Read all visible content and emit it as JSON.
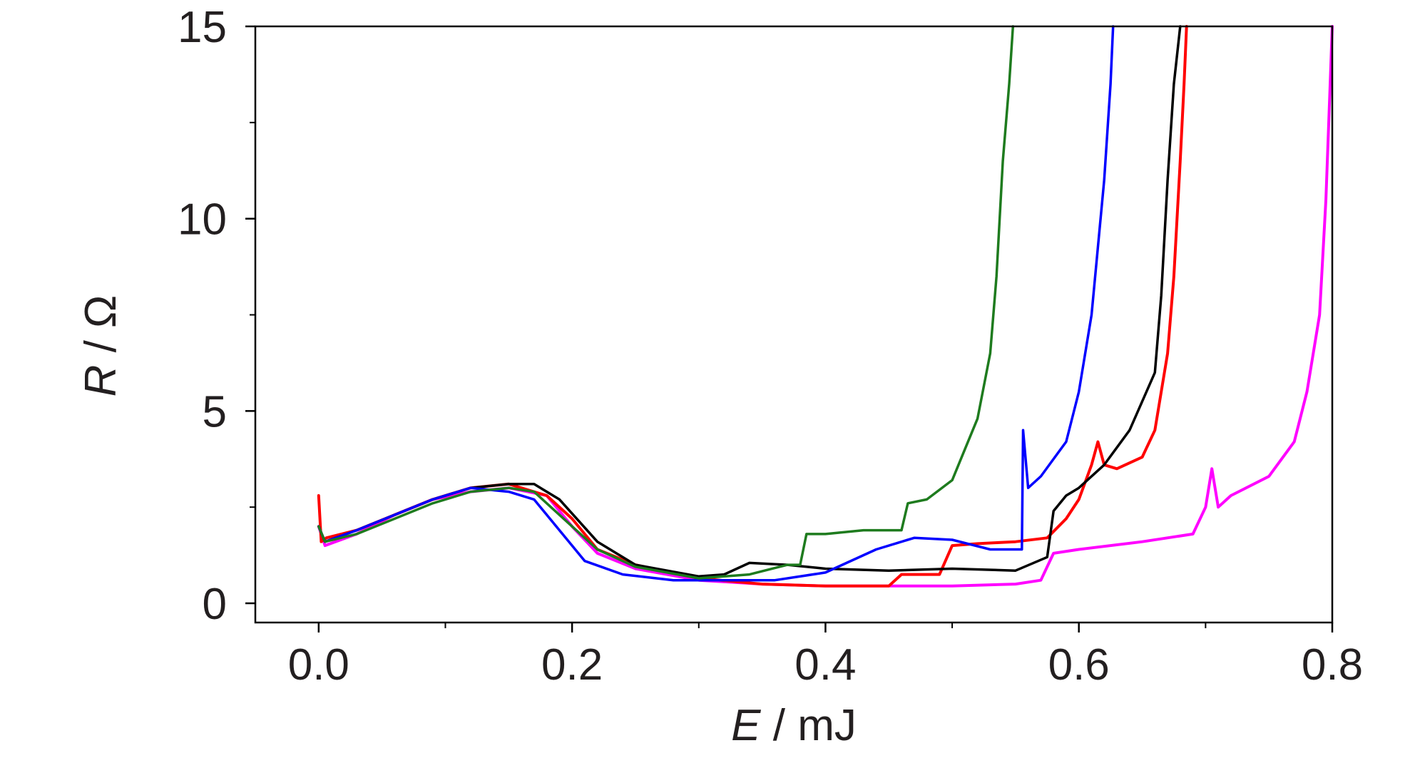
{
  "chart_data": {
    "type": "line",
    "title": "",
    "xlabel": {
      "symbol": "E",
      "unit": " / mJ"
    },
    "ylabel": {
      "symbol": "R",
      "unit": " /  Ω"
    },
    "xlim": [
      -0.05,
      0.8
    ],
    "ylim": [
      -0.5,
      15
    ],
    "xticks": [
      0.0,
      0.2,
      0.4,
      0.6,
      0.8
    ],
    "xtick_labels": [
      "0.0",
      "0.2",
      "0.4",
      "0.6",
      "0.8"
    ],
    "yticks": [
      0,
      5,
      10,
      15
    ],
    "ytick_labels": [
      "0",
      "5",
      "10",
      "15"
    ],
    "x_minor_ticks": [
      0.1,
      0.3,
      0.5,
      0.7
    ],
    "y_minor_ticks": [
      2.5,
      7.5,
      12.5
    ],
    "grid": false,
    "legend": "none",
    "series": [
      {
        "color": "#ff00ff",
        "x": [
          0.0,
          0.005,
          0.03,
          0.06,
          0.09,
          0.12,
          0.15,
          0.18,
          0.2,
          0.22,
          0.25,
          0.3,
          0.35,
          0.4,
          0.45,
          0.5,
          0.55,
          0.57,
          0.58,
          0.6,
          0.65,
          0.69,
          0.7,
          0.705,
          0.71,
          0.72,
          0.75,
          0.77,
          0.78,
          0.79,
          0.795,
          0.8
        ],
        "y": [
          2.0,
          1.5,
          1.8,
          2.3,
          2.7,
          2.9,
          3.0,
          2.8,
          2.0,
          1.3,
          0.9,
          0.6,
          0.5,
          0.45,
          0.45,
          0.45,
          0.5,
          0.6,
          1.3,
          1.4,
          1.6,
          1.8,
          2.5,
          3.5,
          2.5,
          2.8,
          3.3,
          4.2,
          5.5,
          7.5,
          10.5,
          15
        ]
      },
      {
        "color": "#ff0000",
        "x": [
          0.0,
          0.002,
          0.006,
          0.03,
          0.06,
          0.09,
          0.12,
          0.15,
          0.18,
          0.2,
          0.22,
          0.25,
          0.3,
          0.35,
          0.4,
          0.45,
          0.46,
          0.49,
          0.5,
          0.52,
          0.55,
          0.575,
          0.59,
          0.6,
          0.61,
          0.615,
          0.62,
          0.63,
          0.65,
          0.66,
          0.67,
          0.675,
          0.68,
          0.683,
          0.685
        ],
        "y": [
          2.8,
          1.6,
          1.7,
          1.9,
          2.3,
          2.7,
          3.0,
          3.1,
          2.8,
          2.2,
          1.4,
          1.0,
          0.65,
          0.5,
          0.45,
          0.45,
          0.75,
          0.75,
          1.5,
          1.55,
          1.6,
          1.7,
          2.2,
          2.7,
          3.6,
          4.2,
          3.6,
          3.5,
          3.8,
          4.5,
          6.5,
          8.5,
          11.5,
          13.5,
          15
        ]
      },
      {
        "color": "#000000",
        "x": [
          0.0,
          0.005,
          0.03,
          0.06,
          0.09,
          0.12,
          0.15,
          0.17,
          0.19,
          0.22,
          0.25,
          0.3,
          0.32,
          0.34,
          0.37,
          0.4,
          0.45,
          0.5,
          0.55,
          0.575,
          0.58,
          0.59,
          0.6,
          0.62,
          0.64,
          0.66,
          0.665,
          0.67,
          0.675,
          0.68
        ],
        "y": [
          2.0,
          1.6,
          1.9,
          2.3,
          2.7,
          3.0,
          3.1,
          3.1,
          2.7,
          1.6,
          1.0,
          0.7,
          0.75,
          1.05,
          1.0,
          0.9,
          0.85,
          0.9,
          0.85,
          1.2,
          2.4,
          2.8,
          3.0,
          3.6,
          4.5,
          6.0,
          8.0,
          11.0,
          13.5,
          15
        ]
      },
      {
        "color": "#0000ff",
        "x": [
          0.0,
          0.005,
          0.03,
          0.06,
          0.09,
          0.12,
          0.15,
          0.17,
          0.19,
          0.21,
          0.24,
          0.28,
          0.32,
          0.36,
          0.4,
          0.44,
          0.47,
          0.5,
          0.53,
          0.555,
          0.556,
          0.56,
          0.57,
          0.59,
          0.6,
          0.61,
          0.62,
          0.625,
          0.627
        ],
        "y": [
          2.0,
          1.6,
          1.9,
          2.3,
          2.7,
          3.0,
          2.9,
          2.7,
          1.9,
          1.1,
          0.75,
          0.6,
          0.6,
          0.6,
          0.8,
          1.4,
          1.7,
          1.65,
          1.4,
          1.4,
          4.5,
          3.0,
          3.3,
          4.2,
          5.5,
          7.5,
          11.0,
          13.5,
          15
        ]
      },
      {
        "color": "#1e7b1e",
        "x": [
          0.0,
          0.005,
          0.03,
          0.06,
          0.09,
          0.12,
          0.15,
          0.17,
          0.2,
          0.22,
          0.25,
          0.3,
          0.34,
          0.37,
          0.38,
          0.385,
          0.4,
          0.43,
          0.46,
          0.465,
          0.48,
          0.5,
          0.51,
          0.52,
          0.53,
          0.535,
          0.54,
          0.545,
          0.548
        ],
        "y": [
          2.0,
          1.6,
          1.8,
          2.2,
          2.6,
          2.9,
          3.0,
          2.9,
          2.0,
          1.4,
          0.95,
          0.65,
          0.75,
          1.0,
          1.0,
          1.8,
          1.8,
          1.9,
          1.9,
          2.6,
          2.7,
          3.2,
          4.0,
          4.8,
          6.5,
          8.5,
          11.5,
          13.5,
          15
        ]
      }
    ]
  }
}
